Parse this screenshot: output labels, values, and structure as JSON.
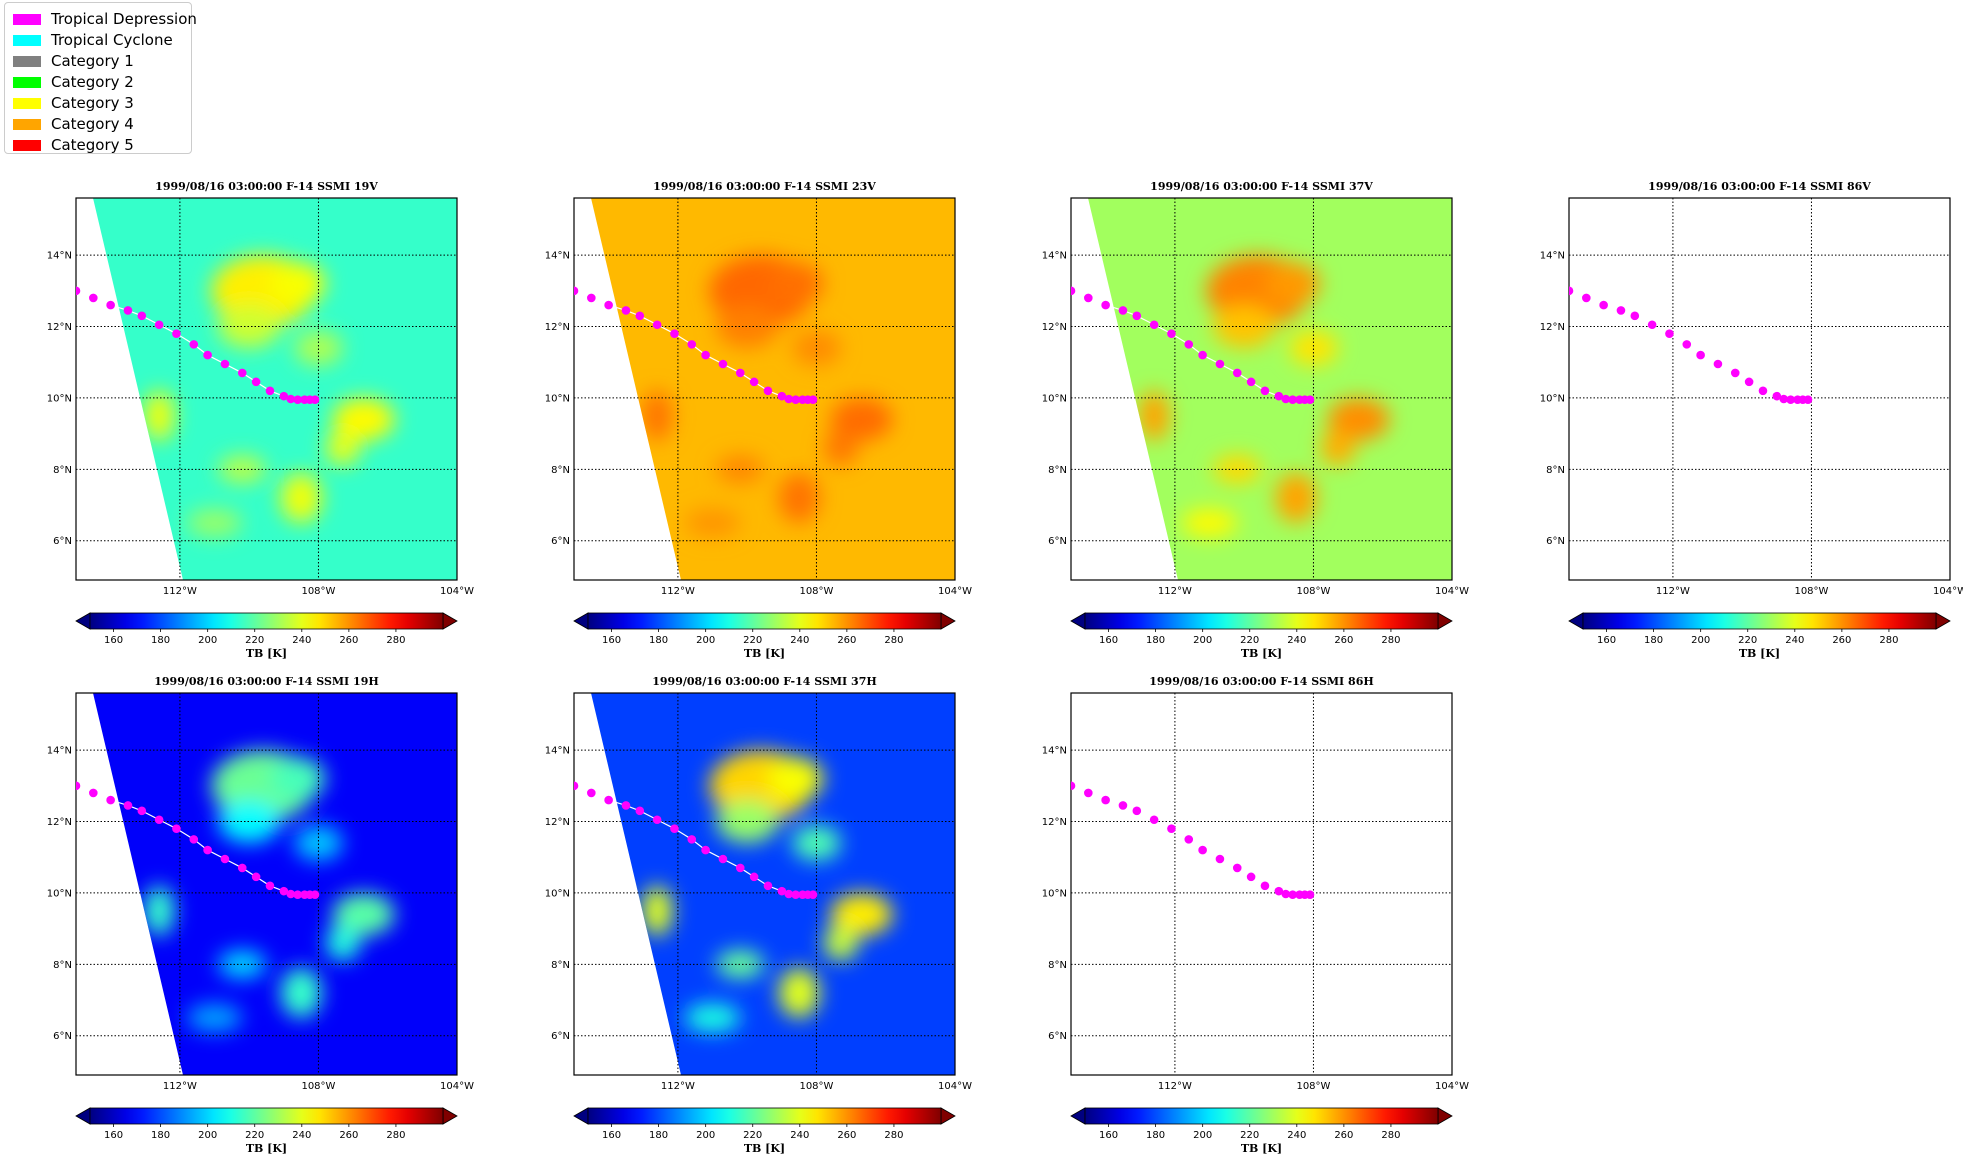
{
  "legend": {
    "items": [
      {
        "label": "Tropical Depression",
        "color": "#ff00ff"
      },
      {
        "label": "Tropical Cyclone",
        "color": "#00ffff"
      },
      {
        "label": "Category 1",
        "color": "#808080"
      },
      {
        "label": "Category 2",
        "color": "#00ff00"
      },
      {
        "label": "Category 3",
        "color": "#ffff00"
      },
      {
        "label": "Category 4",
        "color": "#ffa500"
      },
      {
        "label": "Category 5",
        "color": "#ff0000"
      }
    ]
  },
  "colors": {
    "track_marker": "#ff00ff",
    "track_line": "#ffffff",
    "colormap": "jet"
  },
  "chart_data": [
    {
      "type": "heatmap",
      "title": "1999/08/16 03:00:00  F-14 SSMI 19V",
      "channel": "19V",
      "data_present": true,
      "base_tb": 214,
      "feature_tb": 246,
      "swath_edge": "west"
    },
    {
      "type": "heatmap",
      "title": "1999/08/16 03:00:00  F-14 SSMI 23V",
      "channel": "23V",
      "data_present": true,
      "base_tb": 254,
      "feature_tb": 266,
      "swath_edge": "west"
    },
    {
      "type": "heatmap",
      "title": "1999/08/16 03:00:00  F-14 SSMI 37V",
      "channel": "37V",
      "data_present": true,
      "base_tb": 230,
      "feature_tb": 262,
      "swath_edge": "west"
    },
    {
      "type": "heatmap",
      "title": "1999/08/16 03:00:00  F-14 SSMI 86V",
      "channel": "86V",
      "data_present": false
    },
    {
      "type": "heatmap",
      "title": "1999/08/16 03:00:00  F-14 SSMI 19H",
      "channel": "19H",
      "data_present": true,
      "base_tb": 168,
      "feature_tb": 222,
      "swath_edge": "west"
    },
    {
      "type": "heatmap",
      "title": "1999/08/16 03:00:00  F-14 SSMI 37H",
      "channel": "37H",
      "data_present": true,
      "base_tb": 178,
      "feature_tb": 250,
      "swath_edge": "west"
    },
    {
      "type": "heatmap",
      "title": "1999/08/16 03:00:00  F-14 SSMI 86H",
      "channel": "86H",
      "data_present": false
    }
  ],
  "axes": {
    "xlim": [
      -115,
      -104
    ],
    "ylim": [
      4.9,
      15.6
    ],
    "xticks": [
      -112,
      -108,
      -104
    ],
    "xtick_labels": [
      "112°W",
      "108°W",
      "104°W"
    ],
    "yticks": [
      6,
      8,
      10,
      12,
      14
    ],
    "ytick_labels": [
      "6°N",
      "8°N",
      "10°N",
      "12°N",
      "14°N"
    ],
    "grid": "dotted"
  },
  "colorbar": {
    "label": "TB [K]",
    "vmin": 150,
    "vmax": 300,
    "ticks": [
      160,
      180,
      200,
      220,
      240,
      260,
      280
    ],
    "tick_labels": [
      "160",
      "180",
      "200",
      "220",
      "240",
      "260",
      "280"
    ],
    "extend": "both"
  },
  "track": {
    "lon": [
      -115.0,
      -114.5,
      -114.0,
      -113.5,
      -113.1,
      -112.6,
      -112.1,
      -111.6,
      -111.2,
      -110.7,
      -110.2,
      -109.8,
      -109.4,
      -109.0,
      -108.8,
      -108.6,
      -108.4,
      -108.25,
      -108.1
    ],
    "lat": [
      13.0,
      12.8,
      12.6,
      12.45,
      12.3,
      12.05,
      11.8,
      11.5,
      11.2,
      10.95,
      10.7,
      10.45,
      10.2,
      10.05,
      9.97,
      9.95,
      9.95,
      9.95,
      9.95
    ],
    "category": "Tropical Depression"
  }
}
